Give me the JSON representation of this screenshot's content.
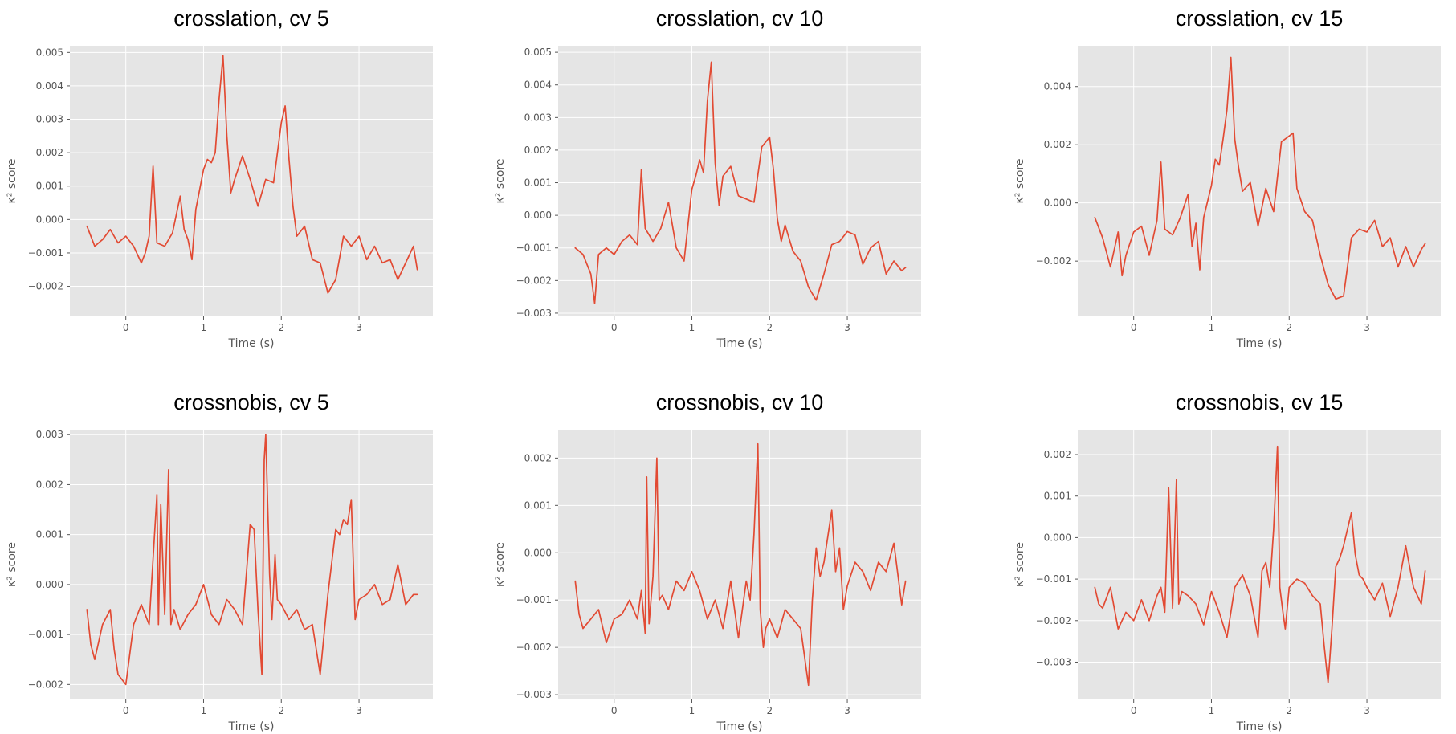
{
  "style": {
    "line_color": "#e24a33",
    "background_color": "#e5e5e5",
    "grid_color": "#ffffff",
    "text_color": "#555555"
  },
  "chart_data": [
    {
      "type": "line",
      "title": "crosslation, cv 5",
      "xlabel": "Time (s)",
      "ylabel": "κ² score",
      "xlim": [
        -0.72,
        3.95
      ],
      "ylim": [
        -0.0029,
        0.0052
      ],
      "xticks": [
        0,
        1,
        2,
        3
      ],
      "xtick_labels": [
        "0",
        "1",
        "2",
        "3"
      ],
      "yticks": [
        -0.002,
        -0.001,
        0.0,
        0.001,
        0.002,
        0.003,
        0.004,
        0.005
      ],
      "ytick_labels": [
        "−0.002",
        "−0.001",
        "0.000",
        "0.001",
        "0.002",
        "0.003",
        "0.004",
        "0.005"
      ],
      "grid": true,
      "series": [
        {
          "name": "crosslation, cv 5",
          "x": [
            -0.5,
            -0.4,
            -0.3,
            -0.2,
            -0.1,
            0.0,
            0.1,
            0.2,
            0.25,
            0.3,
            0.35,
            0.4,
            0.5,
            0.6,
            0.7,
            0.75,
            0.8,
            0.85,
            0.9,
            1.0,
            1.05,
            1.1,
            1.15,
            1.2,
            1.25,
            1.3,
            1.35,
            1.4,
            1.5,
            1.6,
            1.7,
            1.8,
            1.9,
            2.0,
            2.05,
            2.1,
            2.15,
            2.2,
            2.3,
            2.4,
            2.5,
            2.6,
            2.7,
            2.8,
            2.9,
            3.0,
            3.1,
            3.2,
            3.3,
            3.4,
            3.5,
            3.6,
            3.7,
            3.75
          ],
          "y": [
            -0.0002,
            -0.0008,
            -0.0006,
            -0.0003,
            -0.0007,
            -0.0005,
            -0.0008,
            -0.0013,
            -0.001,
            -0.0005,
            0.0016,
            -0.0007,
            -0.0008,
            -0.0004,
            0.0007,
            -0.0003,
            -0.0006,
            -0.0012,
            0.0003,
            0.0015,
            0.0018,
            0.0017,
            0.002,
            0.0036,
            0.0049,
            0.0025,
            0.0008,
            0.0012,
            0.0019,
            0.0012,
            0.0004,
            0.0012,
            0.0011,
            0.0029,
            0.0034,
            0.0018,
            0.0004,
            -0.0005,
            -0.0002,
            -0.0012,
            -0.0013,
            -0.0022,
            -0.0018,
            -0.0005,
            -0.0008,
            -0.0005,
            -0.0012,
            -0.0008,
            -0.0013,
            -0.0012,
            -0.0018,
            -0.0013,
            -0.0008,
            -0.0015
          ]
        }
      ]
    },
    {
      "type": "line",
      "title": "crosslation, cv 10",
      "xlabel": "Time (s)",
      "ylabel": "κ² score",
      "xlim": [
        -0.72,
        3.95
      ],
      "ylim": [
        -0.0031,
        0.0052
      ],
      "xticks": [
        0,
        1,
        2,
        3
      ],
      "xtick_labels": [
        "0",
        "1",
        "2",
        "3"
      ],
      "yticks": [
        -0.003,
        -0.002,
        -0.001,
        0.0,
        0.001,
        0.002,
        0.003,
        0.004,
        0.005
      ],
      "ytick_labels": [
        "−0.003",
        "−0.002",
        "−0.001",
        "0.000",
        "0.001",
        "0.002",
        "0.003",
        "0.004",
        "0.005"
      ],
      "grid": true,
      "series": [
        {
          "name": "crosslation, cv 10",
          "x": [
            -0.5,
            -0.4,
            -0.3,
            -0.25,
            -0.2,
            -0.1,
            0.0,
            0.1,
            0.2,
            0.3,
            0.35,
            0.4,
            0.5,
            0.6,
            0.7,
            0.8,
            0.9,
            1.0,
            1.05,
            1.1,
            1.15,
            1.2,
            1.25,
            1.3,
            1.35,
            1.4,
            1.5,
            1.6,
            1.7,
            1.8,
            1.9,
            2.0,
            2.05,
            2.1,
            2.15,
            2.2,
            2.3,
            2.4,
            2.5,
            2.6,
            2.7,
            2.8,
            2.9,
            3.0,
            3.1,
            3.2,
            3.3,
            3.4,
            3.5,
            3.6,
            3.7,
            3.75
          ],
          "y": [
            -0.001,
            -0.0012,
            -0.0018,
            -0.0027,
            -0.0012,
            -0.001,
            -0.0012,
            -0.0008,
            -0.0006,
            -0.0009,
            0.0014,
            -0.0004,
            -0.0008,
            -0.0004,
            0.0004,
            -0.001,
            -0.0014,
            0.0008,
            0.0012,
            0.0017,
            0.0013,
            0.0035,
            0.0047,
            0.0016,
            0.0003,
            0.0012,
            0.0015,
            0.0006,
            0.0005,
            0.0004,
            0.0021,
            0.0024,
            0.0014,
            -0.0001,
            -0.0008,
            -0.0003,
            -0.0011,
            -0.0014,
            -0.0022,
            -0.0026,
            -0.0018,
            -0.0009,
            -0.0008,
            -0.0005,
            -0.0006,
            -0.0015,
            -0.001,
            -0.0008,
            -0.0018,
            -0.0014,
            -0.0017,
            -0.0016
          ]
        }
      ]
    },
    {
      "type": "line",
      "title": "crosslation, cv 15",
      "xlabel": "Time (s)",
      "ylabel": "κ² score",
      "xlim": [
        -0.72,
        3.95
      ],
      "ylim": [
        -0.0039,
        0.0054
      ],
      "xticks": [
        0,
        1,
        2,
        3
      ],
      "xtick_labels": [
        "0",
        "1",
        "2",
        "3"
      ],
      "yticks": [
        -0.002,
        0.0,
        0.002,
        0.004
      ],
      "ytick_labels": [
        "−0.002",
        "0.000",
        "0.002",
        "0.004"
      ],
      "grid": true,
      "series": [
        {
          "name": "crosslation, cv 15",
          "x": [
            -0.5,
            -0.4,
            -0.3,
            -0.2,
            -0.15,
            -0.1,
            0.0,
            0.1,
            0.2,
            0.3,
            0.35,
            0.4,
            0.5,
            0.6,
            0.7,
            0.75,
            0.8,
            0.85,
            0.9,
            1.0,
            1.05,
            1.1,
            1.15,
            1.2,
            1.25,
            1.3,
            1.35,
            1.4,
            1.5,
            1.6,
            1.7,
            1.8,
            1.9,
            2.0,
            2.05,
            2.1,
            2.2,
            2.3,
            2.4,
            2.5,
            2.6,
            2.7,
            2.8,
            2.9,
            3.0,
            3.1,
            3.2,
            3.3,
            3.4,
            3.5,
            3.6,
            3.7,
            3.75
          ],
          "y": [
            -0.0005,
            -0.0012,
            -0.0022,
            -0.001,
            -0.0025,
            -0.0018,
            -0.001,
            -0.0008,
            -0.0018,
            -0.0006,
            0.0014,
            -0.0009,
            -0.0011,
            -0.0005,
            0.0003,
            -0.0015,
            -0.0007,
            -0.0023,
            -0.0005,
            0.0006,
            0.0015,
            0.0013,
            0.0022,
            0.0032,
            0.005,
            0.0022,
            0.0012,
            0.0004,
            0.0007,
            -0.0008,
            0.0005,
            -0.0003,
            0.0021,
            0.0023,
            0.0024,
            0.0005,
            -0.0003,
            -0.0006,
            -0.0018,
            -0.0028,
            -0.0033,
            -0.0032,
            -0.0012,
            -0.0009,
            -0.001,
            -0.0006,
            -0.0015,
            -0.0012,
            -0.0022,
            -0.0015,
            -0.0022,
            -0.0016,
            -0.0014
          ]
        }
      ]
    },
    {
      "type": "line",
      "title": "crossnobis, cv 5",
      "xlabel": "Time (s)",
      "ylabel": "κ² score",
      "xlim": [
        -0.72,
        3.95
      ],
      "ylim": [
        -0.0023,
        0.0031
      ],
      "xticks": [
        0,
        1,
        2,
        3
      ],
      "xtick_labels": [
        "0",
        "1",
        "2",
        "3"
      ],
      "yticks": [
        -0.002,
        -0.001,
        0.0,
        0.001,
        0.002,
        0.003
      ],
      "ytick_labels": [
        "−0.002",
        "−0.001",
        "0.000",
        "0.001",
        "0.002",
        "0.003"
      ],
      "grid": true,
      "series": [
        {
          "name": "crossnobis, cv 5",
          "x": [
            -0.5,
            -0.45,
            -0.4,
            -0.3,
            -0.2,
            -0.15,
            -0.1,
            0.0,
            0.1,
            0.2,
            0.3,
            0.4,
            0.42,
            0.45,
            0.5,
            0.55,
            0.58,
            0.62,
            0.7,
            0.8,
            0.9,
            1.0,
            1.1,
            1.2,
            1.3,
            1.4,
            1.5,
            1.6,
            1.65,
            1.7,
            1.75,
            1.78,
            1.8,
            1.85,
            1.88,
            1.92,
            1.95,
            2.0,
            2.1,
            2.2,
            2.3,
            2.4,
            2.5,
            2.6,
            2.7,
            2.75,
            2.8,
            2.85,
            2.9,
            2.95,
            3.0,
            3.1,
            3.2,
            3.3,
            3.4,
            3.5,
            3.6,
            3.7,
            3.75
          ],
          "y": [
            -0.0005,
            -0.0012,
            -0.0015,
            -0.0008,
            -0.0005,
            -0.0013,
            -0.0018,
            -0.002,
            -0.0008,
            -0.0004,
            -0.0008,
            0.0018,
            -0.0008,
            0.0016,
            -0.0006,
            0.0023,
            -0.0008,
            -0.0005,
            -0.0009,
            -0.0006,
            -0.0004,
            0.0,
            -0.0006,
            -0.0008,
            -0.0003,
            -0.0005,
            -0.0008,
            0.0012,
            0.0011,
            -0.0005,
            -0.0018,
            0.0025,
            0.003,
            0.0002,
            -0.0007,
            0.0006,
            -0.0003,
            -0.0004,
            -0.0007,
            -0.0005,
            -0.0009,
            -0.0008,
            -0.0018,
            -0.0002,
            0.0011,
            0.001,
            0.0013,
            0.0012,
            0.0017,
            -0.0007,
            -0.0003,
            -0.0002,
            0.0,
            -0.0004,
            -0.0003,
            0.0004,
            -0.0004,
            -0.0002,
            -0.0002
          ]
        }
      ]
    },
    {
      "type": "line",
      "title": "crossnobis, cv 10",
      "xlabel": "Time (s)",
      "ylabel": "κ² score",
      "xlim": [
        -0.72,
        3.95
      ],
      "ylim": [
        -0.0031,
        0.0026
      ],
      "xticks": [
        0,
        1,
        2,
        3
      ],
      "xtick_labels": [
        "0",
        "1",
        "2",
        "3"
      ],
      "yticks": [
        -0.003,
        -0.002,
        -0.001,
        0.0,
        0.001,
        0.002
      ],
      "ytick_labels": [
        "−0.003",
        "−0.002",
        "−0.001",
        "0.000",
        "0.001",
        "0.002"
      ],
      "grid": true,
      "series": [
        {
          "name": "crossnobis, cv 10",
          "x": [
            -0.5,
            -0.45,
            -0.4,
            -0.3,
            -0.2,
            -0.1,
            0.0,
            0.1,
            0.2,
            0.3,
            0.35,
            0.4,
            0.42,
            0.45,
            0.5,
            0.55,
            0.58,
            0.62,
            0.7,
            0.8,
            0.9,
            1.0,
            1.1,
            1.2,
            1.3,
            1.4,
            1.5,
            1.6,
            1.65,
            1.7,
            1.75,
            1.8,
            1.85,
            1.88,
            1.92,
            1.95,
            2.0,
            2.1,
            2.2,
            2.3,
            2.4,
            2.5,
            2.55,
            2.6,
            2.65,
            2.7,
            2.8,
            2.85,
            2.9,
            2.95,
            3.0,
            3.1,
            3.2,
            3.3,
            3.4,
            3.5,
            3.6,
            3.7,
            3.75
          ],
          "y": [
            -0.0006,
            -0.0013,
            -0.0016,
            -0.0014,
            -0.0012,
            -0.0019,
            -0.0014,
            -0.0013,
            -0.001,
            -0.0014,
            -0.0008,
            -0.0017,
            0.0016,
            -0.0015,
            -0.0005,
            0.002,
            -0.001,
            -0.0009,
            -0.0012,
            -0.0006,
            -0.0008,
            -0.0004,
            -0.0008,
            -0.0014,
            -0.001,
            -0.0016,
            -0.0006,
            -0.0018,
            -0.0012,
            -0.0006,
            -0.001,
            0.0004,
            0.0023,
            -0.0012,
            -0.002,
            -0.0016,
            -0.0014,
            -0.0018,
            -0.0012,
            -0.0014,
            -0.0016,
            -0.0028,
            -0.001,
            0.0001,
            -0.0005,
            -0.0002,
            0.0009,
            -0.0004,
            0.0001,
            -0.0012,
            -0.0007,
            -0.0002,
            -0.0004,
            -0.0008,
            -0.0002,
            -0.0004,
            0.0002,
            -0.0011,
            -0.0006
          ]
        }
      ]
    },
    {
      "type": "line",
      "title": "crossnobis, cv 15",
      "xlabel": "Time (s)",
      "ylabel": "κ² score",
      "xlim": [
        -0.72,
        3.95
      ],
      "ylim": [
        -0.0039,
        0.0026
      ],
      "xticks": [
        0,
        1,
        2,
        3
      ],
      "xtick_labels": [
        "0",
        "1",
        "2",
        "3"
      ],
      "yticks": [
        -0.003,
        -0.002,
        -0.001,
        0.0,
        0.001,
        0.002
      ],
      "ytick_labels": [
        "−0.003",
        "−0.002",
        "−0.001",
        "0.000",
        "0.001",
        "0.002"
      ],
      "grid": true,
      "series": [
        {
          "name": "crossnobis, cv 15",
          "x": [
            -0.5,
            -0.45,
            -0.4,
            -0.3,
            -0.2,
            -0.1,
            0.0,
            0.1,
            0.2,
            0.3,
            0.35,
            0.4,
            0.45,
            0.5,
            0.55,
            0.58,
            0.62,
            0.7,
            0.8,
            0.9,
            1.0,
            1.1,
            1.2,
            1.3,
            1.4,
            1.5,
            1.6,
            1.65,
            1.7,
            1.75,
            1.8,
            1.85,
            1.88,
            1.92,
            1.95,
            2.0,
            2.1,
            2.2,
            2.3,
            2.4,
            2.45,
            2.5,
            2.55,
            2.6,
            2.65,
            2.7,
            2.8,
            2.85,
            2.9,
            2.95,
            3.0,
            3.1,
            3.2,
            3.3,
            3.4,
            3.5,
            3.6,
            3.7,
            3.75
          ],
          "y": [
            -0.0012,
            -0.0016,
            -0.0017,
            -0.0012,
            -0.0022,
            -0.0018,
            -0.002,
            -0.0015,
            -0.002,
            -0.0014,
            -0.0012,
            -0.0018,
            0.0012,
            -0.0017,
            0.0014,
            -0.0016,
            -0.0013,
            -0.0014,
            -0.0016,
            -0.0021,
            -0.0013,
            -0.0018,
            -0.0024,
            -0.0012,
            -0.0009,
            -0.0014,
            -0.0024,
            -0.0008,
            -0.0006,
            -0.0012,
            0.0002,
            0.0022,
            -0.0012,
            -0.0018,
            -0.0022,
            -0.0012,
            -0.001,
            -0.0011,
            -0.0014,
            -0.0016,
            -0.0026,
            -0.0035,
            -0.0022,
            -0.0007,
            -0.0005,
            -0.0002,
            0.0006,
            -0.0004,
            -0.0009,
            -0.001,
            -0.0012,
            -0.0015,
            -0.0011,
            -0.0019,
            -0.0012,
            -0.0002,
            -0.0012,
            -0.0016,
            -0.0008
          ]
        }
      ]
    }
  ]
}
